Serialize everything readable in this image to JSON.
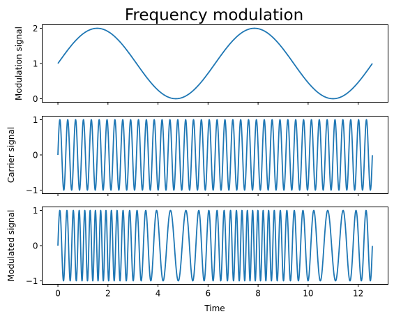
{
  "chart_data": {
    "type": "line",
    "title": "Frequency modulation",
    "xlabel": "Time",
    "xlim": [
      -0.6283,
      13.1947
    ],
    "xticks": [
      0,
      2,
      4,
      6,
      8,
      10,
      12
    ],
    "x_range": [
      0,
      12.566
    ],
    "line_color": "#1f77b4",
    "panels": [
      {
        "ylabel": "Modulation signal",
        "ylim": [
          -0.1,
          2.1
        ],
        "yticks": [
          0,
          1,
          2
        ],
        "function": "1 + sin(t)",
        "samples": 600
      },
      {
        "ylabel": "Carrier signal",
        "ylim": [
          -1.1,
          1.1
        ],
        "yticks": [
          -1,
          0,
          1
        ],
        "function": "sin(20*t)",
        "samples": 2400
      },
      {
        "ylabel": "Modulated signal",
        "ylim": [
          -1.1,
          1.1
        ],
        "yticks": [
          -1,
          0,
          1
        ],
        "function": "sin(20*t + 10*(1 - cos(t)))",
        "samples": 3000
      }
    ]
  }
}
